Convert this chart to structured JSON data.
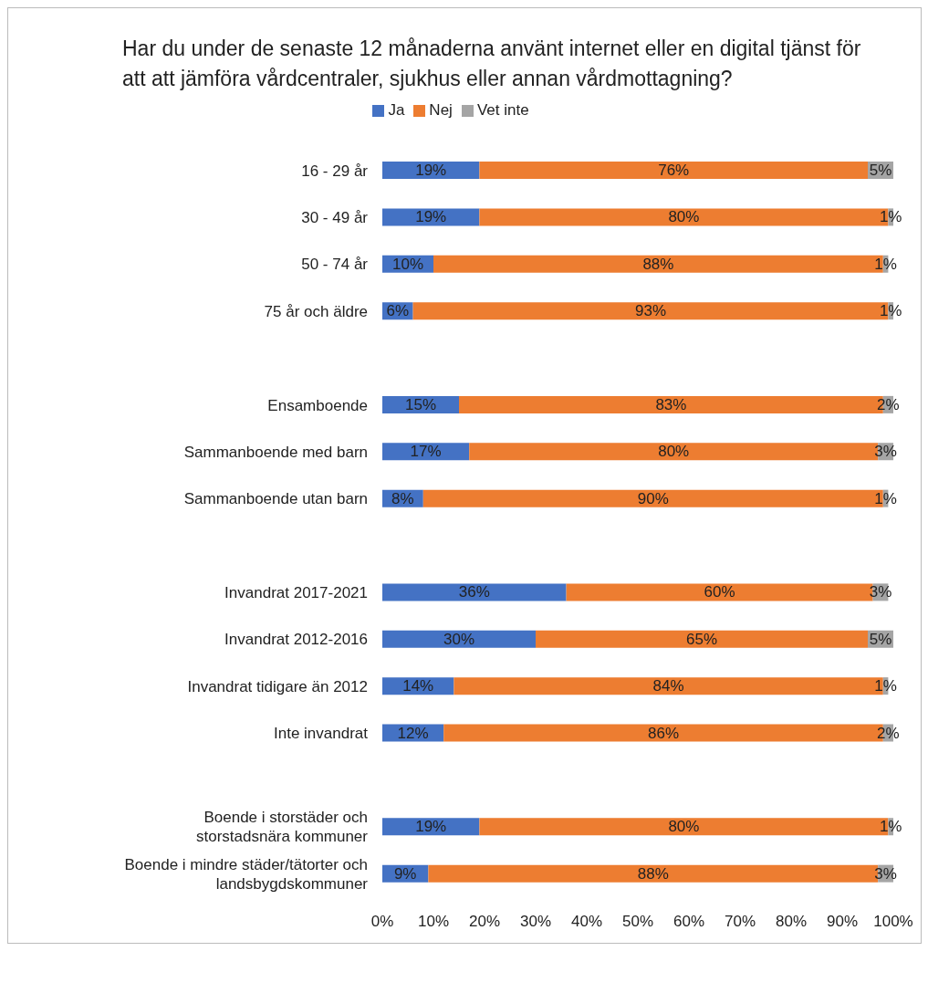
{
  "chart_data": {
    "type": "bar",
    "orientation": "horizontal",
    "stacked": true,
    "title": "Har du under de senaste 12 månaderna använt internet eller en digital tjänst för att att jämföra vårdcentraler, sjukhus eller annan vårdmottagning?",
    "categories": [
      "16 - 29 år",
      "30 - 49 år",
      "50 - 74 år",
      "75 år och äldre",
      null,
      "Ensamboende",
      "Sammanboende med barn",
      "Sammanboende utan barn",
      null,
      "Invandrat 2017-2021",
      "Invandrat 2012-2016",
      "Invandrat tidigare än 2012",
      "Inte invandrat",
      null,
      "Boende i storstäder och storstadsnära kommuner",
      "Boende i mindre städer/tätorter och landsbygdskommuner"
    ],
    "series": [
      {
        "name": "Ja",
        "color": "#4472c4",
        "values": [
          19,
          19,
          10,
          6,
          null,
          15,
          17,
          8,
          null,
          36,
          30,
          14,
          12,
          null,
          19,
          9
        ],
        "value_labels": [
          "19%",
          "19%",
          "10%",
          "6%",
          null,
          "15%",
          "17%",
          "8%",
          null,
          "36%",
          "30%",
          "14%",
          "12%",
          null,
          "19%",
          "9%"
        ]
      },
      {
        "name": "Nej",
        "color": "#ed7d31",
        "values": [
          76,
          80,
          88,
          93,
          null,
          83,
          80,
          90,
          null,
          60,
          65,
          84,
          86,
          null,
          80,
          88
        ],
        "value_labels": [
          "76%",
          "80%",
          "88%",
          "93%",
          null,
          "83%",
          "80%",
          "90%",
          null,
          "60%",
          "65%",
          "84%",
          "86%",
          null,
          "80%",
          "88%"
        ]
      },
      {
        "name": "Vet inte",
        "color": "#a5a5a5",
        "values": [
          5,
          1,
          1,
          1,
          null,
          2,
          3,
          1,
          null,
          3,
          5,
          1,
          2,
          null,
          1,
          3
        ],
        "value_labels": [
          "5%",
          "1%",
          "1%",
          "1%",
          null,
          "2%",
          "3%",
          "1%",
          null,
          "3%",
          "5%",
          "1%",
          "2%",
          null,
          "1%",
          "3%"
        ]
      }
    ],
    "xlim": [
      0,
      100
    ],
    "xticks": [
      {
        "value": 0,
        "label": "0%"
      },
      {
        "value": 10,
        "label": "10%"
      },
      {
        "value": 20,
        "label": "20%"
      },
      {
        "value": 30,
        "label": "30%"
      },
      {
        "value": 40,
        "label": "40%"
      },
      {
        "value": 50,
        "label": "50%"
      },
      {
        "value": 60,
        "label": "60%"
      },
      {
        "value": 70,
        "label": "70%"
      },
      {
        "value": 80,
        "label": "80%"
      },
      {
        "value": 90,
        "label": "90%"
      },
      {
        "value": 100,
        "label": "100%"
      }
    ],
    "legend": "top"
  }
}
